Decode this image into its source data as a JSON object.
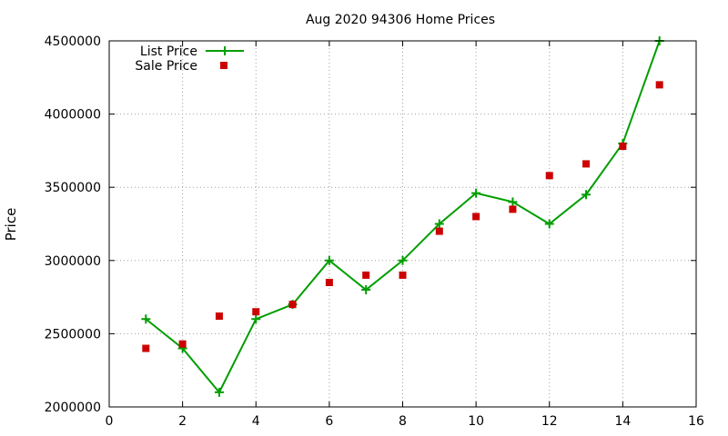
{
  "chart_data": {
    "type": "line",
    "title": "Aug 2020 94306 Home Prices",
    "xlabel": "",
    "ylabel": "Price",
    "xlim": [
      0,
      16
    ],
    "ylim": [
      2000000,
      4500000
    ],
    "x_ticks": [
      "0",
      "2",
      "4",
      "6",
      "8",
      "10",
      "12",
      "14",
      "16"
    ],
    "y_ticks": [
      "2000000",
      "2500000",
      "3000000",
      "3500000",
      "4000000",
      "4500000"
    ],
    "grid": true,
    "legend_position": "top-left",
    "series": [
      {
        "name": "List Price",
        "style": "line-with-plus-markers",
        "color": "#009e00",
        "x": [
          1,
          2,
          3,
          4,
          5,
          6,
          7,
          8,
          9,
          10,
          11,
          12,
          13,
          14,
          15
        ],
        "values": [
          2600000,
          2400000,
          2100000,
          2600000,
          2700000,
          3000000,
          2800000,
          3000000,
          3250000,
          3460000,
          3400000,
          3250000,
          3450000,
          3800000,
          4500000
        ]
      },
      {
        "name": "Sale Price",
        "style": "square-markers",
        "color": "#cc0000",
        "x": [
          1,
          2,
          3,
          4,
          5,
          6,
          7,
          8,
          9,
          10,
          11,
          12,
          13,
          14,
          15
        ],
        "values": [
          2400000,
          2430000,
          2620000,
          2650000,
          2700000,
          2850000,
          2900000,
          2900000,
          3200000,
          3300000,
          3350000,
          3580000,
          3660000,
          3780000,
          4200000
        ]
      }
    ]
  }
}
